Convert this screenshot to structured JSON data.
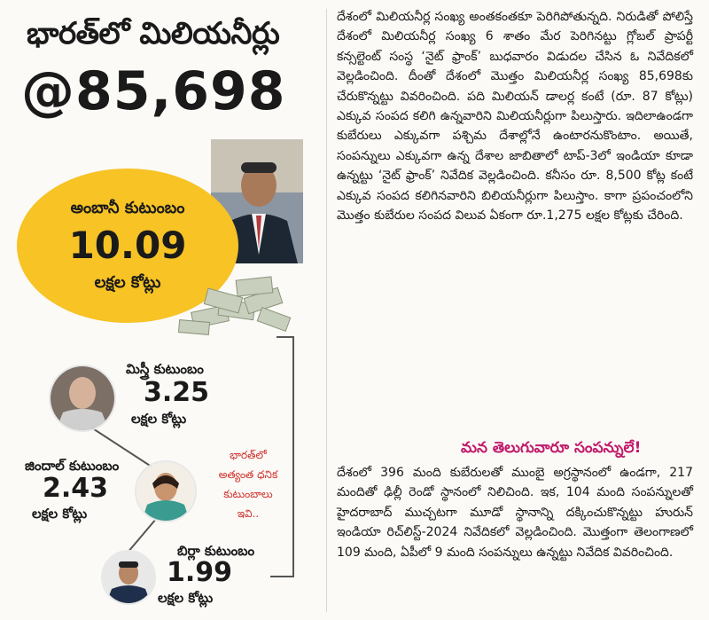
{
  "headline": "భారత్‌లో మిలియనీర్లు",
  "millionaire_count": "@85,698",
  "ambani": {
    "name": "అంబానీ కుటుంబం",
    "value": "10.09",
    "unit": "లక్షల కోట్లు"
  },
  "families": [
    {
      "name": "మిస్త్రీ కుటుంబం",
      "value": "3.25",
      "unit": "లక్షల కోట్లు"
    },
    {
      "name": "జిందాల్ కుటుంబం",
      "value": "2.43",
      "unit": "లక్షల కోట్లు"
    },
    {
      "name": "బిర్లా కుటుంబం",
      "value": "1.99",
      "unit": "లక్షల కోట్లు"
    }
  ],
  "side_note": [
    "భారత్‌లో",
    "అత్యంత ధనిక",
    "కుటుంబాలు",
    "ఇవి.."
  ],
  "article_para": "దేశంలో మిలియనీర్ల సంఖ్య అంతకంతకూ పెరిగిపోతున్నది. నిరుడితో పోలిస్తే దేశంలో మిలియనీర్ల సంఖ్య 6 శాతం మేర పెరిగినట్టు గ్లోబల్ ప్రాపర్టీ కన్సల్టెంట్ సంస్థ ‘నైట్ ఫ్రాంక్’ బుధవారం విడుదల చేసిన ఓ నివేదికలో వెల్లడించింది. దీంతో దేశంలో మొత్తం మిలియనీర్ల సంఖ్య 85,698కు చేరుకొన్నట్టు వివరించింది. పది మిలియన్ డాలర్ల కంటే (రూ. 87 కోట్లు) ఎక్కువ సంపద కలిగి ఉన్నవారిని మిలియనీర్లుగా పిలుస్తారు. ఇదిలాఉండగా కుబేరులు ఎక్కువగా పశ్చిమ దేశాల్లోనే ఉంటారనుకొంటాం. అయితే, సంపన్నులు ఎక్కువగా ఉన్న దేశాల జాబితాలో టాప్-3లో ఇండియా కూడా ఉన్నట్టు ‘నైట్ ఫ్రాంక్’ నివేదిక వెల్లడించింది. కనీసం రూ. 8,500 కోట్ల కంటే ఎక్కువ సంపద కలిగినవారిని బిలియనీర్లుగా పిలుస్తాం. కాగా ప్రపంచంలోని మొత్తం కుబేరుల సంపద విలువ ఏకంగా రూ.1,275 లక్షల కోట్లకు చేరింది.",
  "subheading": "మన తెలుగువారూ సంపన్నులే!",
  "sub_para": "దేశంలో 396 మంది కుబేరులతో ముంబై అగ్రస్థానంలో ఉండగా, 217 మందితో ఢిల్లీ రెండో స్థానంలో నిలిచింది. ఇక, 104 మంది సంపన్నులతో హైదరాబాద్ ముచ్చటగా మూడో స్థానాన్ని దక్కించుకొన్నట్టు హురున్ ఇండియా రిచ్‌లిస్ట్-2024 నివేదికలో వెల్లడించింది. మొత్తంగా తెలంగాణలో 109 మంది, ఏపీలో 9 మంది సంపన్నులు ఉన్నట్టు నివేదిక వివరించింది.",
  "colors": {
    "circle": "#f7c325",
    "accent_pink": "#c11b6b",
    "accent_red": "#d0322b"
  }
}
